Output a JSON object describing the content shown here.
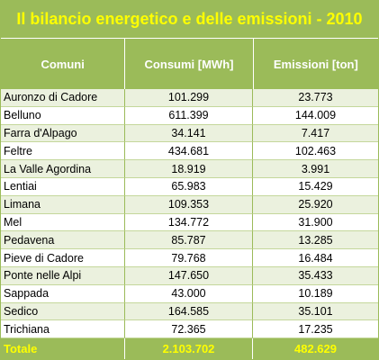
{
  "title": "Il bilancio energetico e delle emissioni - 2010",
  "headers": {
    "comuni": "Comuni",
    "consumi": "Consumi  [MWh]",
    "emissioni": "Emissioni [ton]"
  },
  "rows": [
    {
      "comune": "Auronzo di Cadore",
      "consumi": "101.299",
      "emissioni": "23.773"
    },
    {
      "comune": "Belluno",
      "consumi": "611.399",
      "emissioni": "144.009"
    },
    {
      "comune": "Farra d'Alpago",
      "consumi": "34.141",
      "emissioni": "7.417"
    },
    {
      "comune": "Feltre",
      "consumi": "434.681",
      "emissioni": "102.463"
    },
    {
      "comune": "La Valle Agordina",
      "consumi": "18.919",
      "emissioni": "3.991"
    },
    {
      "comune": "Lentiai",
      "consumi": "65.983",
      "emissioni": "15.429"
    },
    {
      "comune": "Limana",
      "consumi": "109.353",
      "emissioni": "25.920"
    },
    {
      "comune": "Mel",
      "consumi": "134.772",
      "emissioni": "31.900"
    },
    {
      "comune": "Pedavena",
      "consumi": "85.787",
      "emissioni": "13.285"
    },
    {
      "comune": "Pieve di Cadore",
      "consumi": "79.768",
      "emissioni": "16.484"
    },
    {
      "comune": "Ponte nelle Alpi",
      "consumi": "147.650",
      "emissioni": "35.433"
    },
    {
      "comune": "Sappada",
      "consumi": "43.000",
      "emissioni": "10.189"
    },
    {
      "comune": "Sedico",
      "consumi": "164.585",
      "emissioni": "35.101"
    },
    {
      "comune": "Trichiana",
      "consumi": "72.365",
      "emissioni": "17.235"
    }
  ],
  "total": {
    "label": "Totale",
    "consumi": "2.103.702",
    "emissioni": "482.629"
  },
  "colors": {
    "header_bg": "#9bbb59",
    "title_text": "#ffff00",
    "band": "#ebf1de"
  }
}
